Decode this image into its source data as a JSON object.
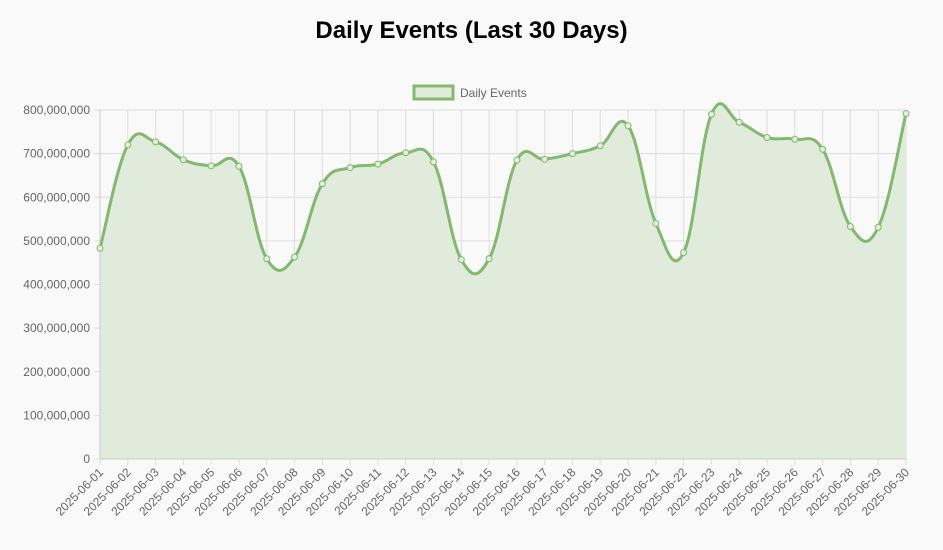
{
  "chart_data": {
    "type": "line",
    "title": "Daily Events (Last 30 Days)",
    "xlabel": "",
    "ylabel": "",
    "x": [
      "2025-06-01",
      "2025-06-02",
      "2025-06-03",
      "2025-06-04",
      "2025-06-05",
      "2025-06-06",
      "2025-06-07",
      "2025-06-08",
      "2025-06-09",
      "2025-06-10",
      "2025-06-11",
      "2025-06-12",
      "2025-06-13",
      "2025-06-14",
      "2025-06-15",
      "2025-06-16",
      "2025-06-17",
      "2025-06-18",
      "2025-06-19",
      "2025-06-20",
      "2025-06-21",
      "2025-06-22",
      "2025-06-23",
      "2025-06-24",
      "2025-06-25",
      "2025-06-26",
      "2025-06-27",
      "2025-06-28",
      "2025-06-29",
      "2025-06-30"
    ],
    "series": [
      {
        "name": "Daily Events",
        "color": "#82b86f",
        "fill": "#e0ebdb",
        "values": [
          483000000,
          720000000,
          727000000,
          686000000,
          672000000,
          671000000,
          459000000,
          463000000,
          631000000,
          668000000,
          676000000,
          702000000,
          681000000,
          457000000,
          459000000,
          685000000,
          687000000,
          700000000,
          718000000,
          764000000,
          540000000,
          473000000,
          790000000,
          772000000,
          737000000,
          733000000,
          710000000,
          533000000,
          531000000,
          792000000
        ]
      }
    ],
    "yticks": [
      "0",
      "100,000,000",
      "200,000,000",
      "300,000,000",
      "400,000,000",
      "500,000,000",
      "600,000,000",
      "700,000,000",
      "800,000,000"
    ],
    "ylim": [
      0,
      800000000
    ],
    "grid": true,
    "legend_position": "top-center"
  }
}
